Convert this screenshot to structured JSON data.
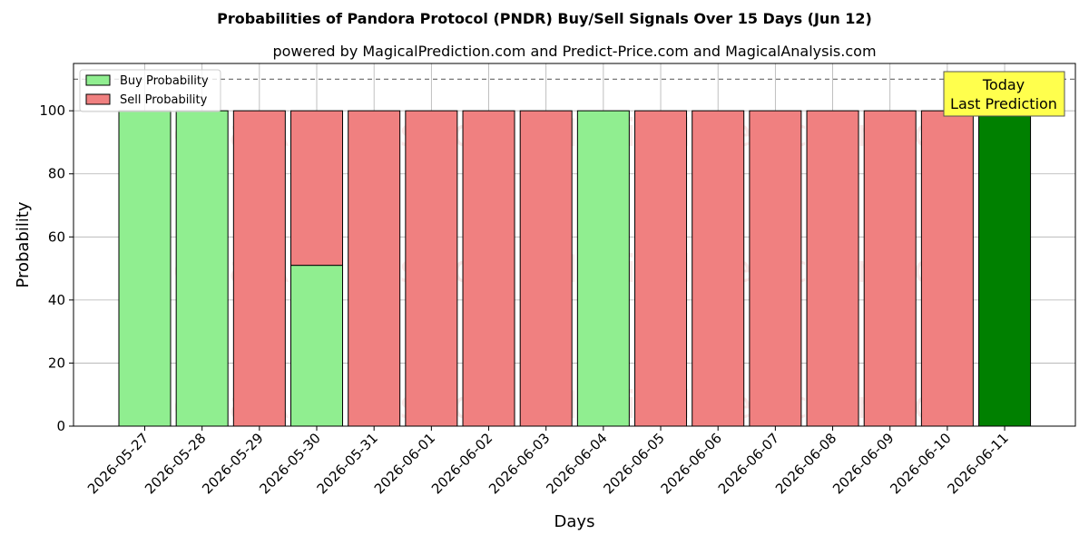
{
  "colors": {
    "buy": "#90ee90",
    "sell": "#f08080",
    "today": "#008000",
    "annotation_bg": "#ffff4d",
    "grid": "#b0b0b0"
  },
  "chart_data": {
    "type": "bar",
    "title": "Probabilities of Pandora Protocol (PNDR) Buy/Sell Signals Over 15 Days (Jun 12)",
    "subtitle": "powered by MagicalPrediction.com and Predict-Price.com and MagicalAnalysis.com",
    "xlabel": "Days",
    "ylabel": "Probability",
    "ylim": [
      0,
      115
    ],
    "yticks": [
      0,
      20,
      40,
      60,
      80,
      100
    ],
    "reference_line": 110,
    "grid": true,
    "legend_position": "top-left",
    "categories": [
      "2026-05-27",
      "2026-05-28",
      "2026-05-29",
      "2026-05-30",
      "2026-05-31",
      "2026-06-01",
      "2026-06-02",
      "2026-06-03",
      "2026-06-04",
      "2026-06-05",
      "2026-06-06",
      "2026-06-07",
      "2026-06-08",
      "2026-06-09",
      "2026-06-10",
      "2026-06-11"
    ],
    "series": [
      {
        "name": "Buy Probability",
        "values": [
          100,
          100,
          0,
          51,
          0,
          0,
          0,
          0,
          100,
          0,
          0,
          0,
          0,
          0,
          0,
          100
        ]
      },
      {
        "name": "Sell Probability",
        "values": [
          0,
          0,
          100,
          49,
          100,
          100,
          100,
          100,
          0,
          100,
          100,
          100,
          100,
          100,
          100,
          0
        ]
      }
    ],
    "annotation": {
      "line1": "Today",
      "line2": "Last Prediction",
      "category": "2026-06-11"
    },
    "watermarks": [
      "MagicalAnalysis.com",
      "MagicalPrediction.com"
    ]
  }
}
